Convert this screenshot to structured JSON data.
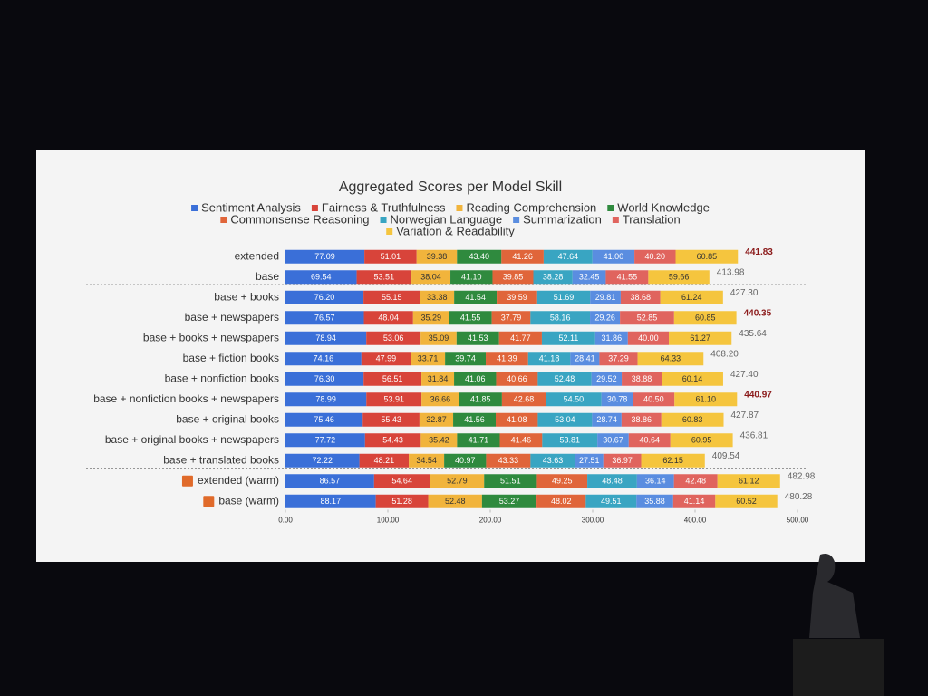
{
  "chart_data": {
    "type": "stacked_bar_horizontal",
    "title": "Aggregated Scores per Model Skill",
    "categories": [
      "extended",
      "base",
      "base + books",
      "base + newspapers",
      "base + books + newspapers",
      "base + fiction books",
      "base + nonfiction books",
      "base + nonfiction books + newspapers",
      "base + original books",
      "base + original books + newspapers",
      "base + translated books",
      "extended (warm)",
      "base (warm)"
    ],
    "series": [
      {
        "name": "Sentiment Analysis",
        "color": "#3a6fd8",
        "values": [
          77.09,
          69.54,
          76.2,
          76.57,
          78.94,
          74.16,
          76.3,
          78.99,
          75.46,
          77.72,
          72.22,
          86.57,
          88.17
        ],
        "value_labels": [
          "77.09",
          "69.54",
          "76.20",
          "76.57",
          "78.94",
          "74.16",
          "76.30",
          "78.99",
          "75.46",
          "77.72",
          "72.22",
          "86.57",
          "88.17"
        ]
      },
      {
        "name": "Fairness & Truthfulness",
        "color": "#d8443a",
        "values": [
          51.01,
          53.51,
          55.15,
          48.04,
          53.06,
          47.99,
          56.51,
          53.91,
          55.43,
          54.43,
          48.21,
          54.64,
          51.28
        ],
        "value_labels": [
          "51.01",
          "53.51",
          "55.15",
          "48.04",
          "53.06",
          "47.99",
          "56.51",
          "53.91",
          "55.43",
          "54.43",
          "48.21",
          "54.64",
          "51.28"
        ]
      },
      {
        "name": "Reading Comprehension",
        "color": "#f1b43c",
        "values": [
          39.38,
          38.04,
          33.38,
          35.29,
          35.09,
          33.71,
          31.84,
          36.66,
          32.87,
          35.42,
          34.54,
          52.79,
          52.48
        ],
        "value_labels": [
          "39.38",
          "38.04",
          "33.38",
          "35.29",
          "35.09",
          "33.71",
          "31.84",
          "36.66",
          "32.87",
          "35.42",
          "34.54",
          "52.79",
          "52.48"
        ]
      },
      {
        "name": "World Knowledge",
        "color": "#2f8a3e",
        "values": [
          43.4,
          41.1,
          41.54,
          41.55,
          41.53,
          39.74,
          41.06,
          41.85,
          41.56,
          41.71,
          40.97,
          51.51,
          53.27
        ],
        "value_labels": [
          "43.40",
          "41.10",
          "41.54",
          "41.55",
          "41.53",
          "39.74",
          "41.06",
          "41.85",
          "41.56",
          "41.71",
          "40.97",
          "51.51",
          "53.27"
        ]
      },
      {
        "name": "Commonsense Reasoning",
        "color": "#e0653a",
        "values": [
          41.26,
          39.85,
          39.59,
          37.79,
          41.77,
          41.39,
          40.66,
          42.68,
          41.08,
          41.46,
          43.33,
          49.25,
          48.02
        ],
        "value_labels": [
          "41.26",
          "39.85",
          "39.59",
          "37.79",
          "41.77",
          "41.39",
          "40.66",
          "42.68",
          "41.08",
          "41.46",
          "43.33",
          "49.25",
          "48.02"
        ]
      },
      {
        "name": "Norwegian Language",
        "color": "#39a5c2",
        "values": [
          47.64,
          38.28,
          51.69,
          58.16,
          52.11,
          41.18,
          52.48,
          54.5,
          53.04,
          53.81,
          43.63,
          48.48,
          49.51
        ],
        "value_labels": [
          "47.64",
          "38.28",
          "51.69",
          "58.16",
          "52.11",
          "41.18",
          "52.48",
          "54.50",
          "53.04",
          "53.81",
          "43.63",
          "48.48",
          "49.51"
        ]
      },
      {
        "name": "Summarization",
        "color": "#5a8de0",
        "values": [
          41.0,
          32.45,
          29.81,
          29.26,
          31.86,
          28.41,
          29.52,
          30.78,
          28.74,
          30.67,
          27.51,
          36.14,
          35.88
        ],
        "value_labels": [
          "41.00",
          "32.45",
          "29.81",
          "29.26",
          "31.86",
          "28.41",
          "29.52",
          "30.78",
          "28.74",
          "30.67",
          "27.51",
          "36.14",
          "35.88"
        ]
      },
      {
        "name": "Translation",
        "color": "#e0645e",
        "values": [
          40.2,
          41.55,
          38.68,
          52.85,
          40.0,
          37.29,
          38.88,
          40.5,
          38.86,
          40.64,
          36.97,
          42.48,
          41.14
        ],
        "value_labels": [
          "40.20",
          "41.55",
          "38.68",
          "52.85",
          "40.00",
          "37.29",
          "38.88",
          "40.50",
          "38.86",
          "40.64",
          "36.97",
          "42.48",
          "41.14"
        ]
      },
      {
        "name": "Variation & Readability",
        "color": "#f5c53e",
        "values": [
          60.85,
          59.66,
          61.24,
          60.85,
          61.27,
          64.33,
          60.14,
          61.1,
          60.83,
          60.95,
          62.15,
          61.12,
          60.52
        ],
        "value_labels": [
          "60.85",
          "59.66",
          "61.24",
          "60.85",
          "61.27",
          "64.33",
          "60.14",
          "61.10",
          "60.83",
          "60.95",
          "62.15",
          "61.12",
          "60.52"
        ]
      }
    ],
    "totals": [
      441.83,
      413.98,
      427.3,
      440.35,
      435.64,
      408.2,
      427.4,
      440.97,
      427.87,
      436.81,
      409.54,
      482.98,
      480.28
    ],
    "total_labels": [
      "441.83",
      "413.98",
      "427.30",
      "440.35",
      "435.64",
      "408.20",
      "427.40",
      "440.97",
      "427.87",
      "436.81",
      "409.54",
      "482.98",
      "480.28"
    ],
    "total_colors": [
      "#8b1a1a",
      "#666666",
      "#666666",
      "#8b1a1a",
      "#666666",
      "#666666",
      "#666666",
      "#8b1a1a",
      "#666666",
      "#666666",
      "#666666",
      "#666666",
      "#666666"
    ],
    "xlim": [
      0,
      500
    ],
    "xticks": [
      {
        "value": 0,
        "label": "0.00"
      },
      {
        "value": 100,
        "label": "100.00"
      },
      {
        "value": 200,
        "label": "200.00"
      },
      {
        "value": 300,
        "label": "300.00"
      },
      {
        "value": 400,
        "label": "400.00"
      },
      {
        "value": 500,
        "label": "500.00"
      }
    ]
  }
}
